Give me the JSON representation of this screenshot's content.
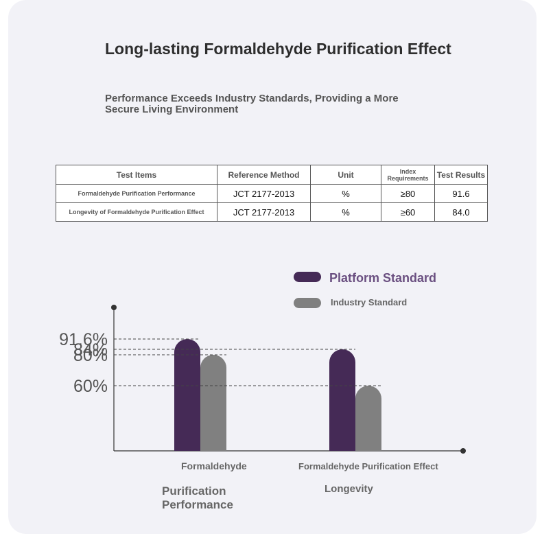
{
  "title": "Long-lasting Formaldehyde Purification Effect",
  "subtitle": "Performance Exceeds Industry Standards, Providing a More Secure Living Environment",
  "table": {
    "headers": [
      "Test Items",
      "Reference Method",
      "Unit",
      "Index Requirements",
      "Test Results"
    ],
    "rows": [
      [
        "Formaldehyde Purification Performance",
        "JCT 2177-2013",
        "%",
        "≥80",
        "91.6"
      ],
      [
        "Longevity of Formaldehyde Purification Effect",
        "JCT 2177-2013",
        "%",
        "≥60",
        "84.0"
      ]
    ]
  },
  "chart_data": {
    "type": "bar",
    "categories": [
      "Formaldehyde",
      "Formaldehyde Purification Effect"
    ],
    "category_captions": [
      "Purification Performance",
      "Longevity"
    ],
    "series": [
      {
        "name": "Platform Standard",
        "values": [
          91.6,
          84
        ]
      },
      {
        "name": "Industry Standard",
        "values": [
          80,
          60
        ]
      }
    ],
    "y_tick_labels": [
      "91.6%",
      "84%",
      "80%",
      "60%"
    ],
    "grid": false,
    "legend": "top-right",
    "colors": {
      "Platform Standard": "#452a56",
      "Industry Standard": "#808080"
    }
  }
}
